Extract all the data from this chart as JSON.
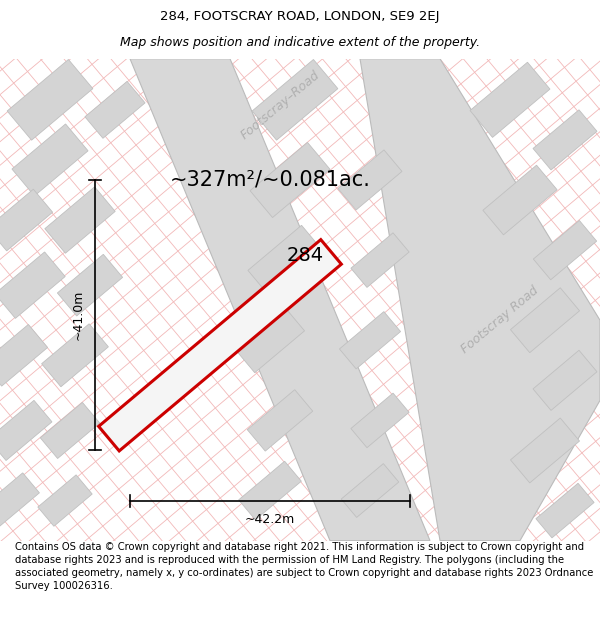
{
  "title_line1": "284, FOOTSCRAY ROAD, LONDON, SE9 2EJ",
  "title_line2": "Map shows position and indicative extent of the property.",
  "area_text": "~327m²/~0.081ac.",
  "label_284": "284",
  "dim_width": "~42.2m",
  "dim_height": "~41.0m",
  "road_label_top": "Footscray–Road",
  "road_label_bottom": "Footscray Road",
  "footer_text": "Contains OS data © Crown copyright and database right 2021. This information is subject to Crown copyright and database rights 2023 and is reproduced with the permission of HM Land Registry. The polygons (including the associated geometry, namely x, y co-ordinates) are subject to Crown copyright and database rights 2023 Ordnance Survey 100026316.",
  "bg_color": "#ffffff",
  "grid_line_color": "#f2b8b8",
  "road_fill_color": "#d8d8d8",
  "parcel_fill_color": "#d4d4d4",
  "parcel_edge_color": "#c0c0c0",
  "plot_outline_color": "#cc0000",
  "road_label_color": "#b0b0b0",
  "title_fontsize": 9.5,
  "subtitle_fontsize": 9,
  "area_fontsize": 15,
  "dim_fontsize": 9,
  "label_fontsize": 14,
  "footer_fontsize": 7.2,
  "road_label_fontsize": 9
}
